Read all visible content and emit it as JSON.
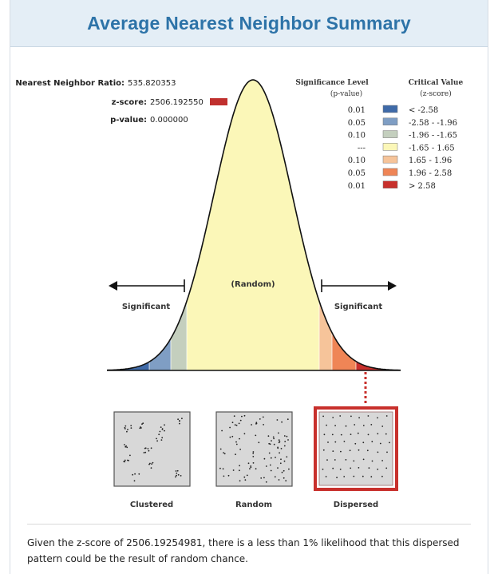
{
  "header": {
    "title": "Average Nearest Neighbor Summary"
  },
  "stats": {
    "ratio_label": "Nearest Neighbor Ratio:",
    "ratio_value": "535.820353",
    "z_label": "z-score:",
    "z_value": "2506.192550",
    "p_label": "p-value:",
    "p_value": "0.000000",
    "z_marker_color": "#c0302e"
  },
  "legend": {
    "sig_header_1": "Significance Level",
    "sig_header_2": "(p-value)",
    "crit_header_1": "Critical Value",
    "crit_header_2": "(z-score)",
    "rows": [
      {
        "p": "0.01",
        "z": "< -2.58",
        "color": "#3f6aa8"
      },
      {
        "p": "0.05",
        "z": "-2.58 - -1.96",
        "color": "#7f9ec4"
      },
      {
        "p": "0.10",
        "z": "-1.96 - -1.65",
        "color": "#c4cfbe"
      },
      {
        "p": "---",
        "z": "-1.65 - 1.65",
        "color": "#fbf7b8"
      },
      {
        "p": "0.10",
        "z": "1.65 - 1.96",
        "color": "#f6c49a"
      },
      {
        "p": "0.05",
        "z": "1.96 - 2.58",
        "color": "#ef8556"
      },
      {
        "p": "0.01",
        "z": "> 2.58",
        "color": "#c8302c"
      }
    ]
  },
  "curve": {
    "center_label": "(Random)",
    "left_label": "Significant",
    "right_label": "Significant"
  },
  "patterns": [
    {
      "label": "Clustered"
    },
    {
      "label": "Random"
    },
    {
      "label": "Dispersed"
    }
  ],
  "conclusion": {
    "text": "Given the z-score of 2506.19254981, there is a less than 1% likelihood that this dispersed pattern could be the result of random chance."
  }
}
